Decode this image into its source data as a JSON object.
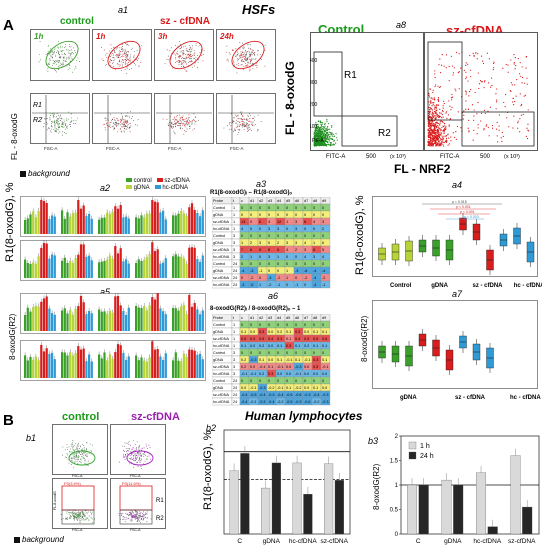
{
  "panel_A": {
    "letter": "A",
    "title": "HSFs",
    "a1": {
      "label": "a1",
      "control": "control",
      "sz_cfdna": "sz - cfDNA",
      "times": [
        "1h",
        "1h",
        "3h",
        "24h"
      ],
      "fl_label": "FL - 8-oxodG",
      "r1": "R1",
      "r2": "R2",
      "xaxis": "FSC-A",
      "background": "background"
    },
    "a8": {
      "label": "a8",
      "control": "Control",
      "sz_cfdna": "sz-cfDNA",
      "ylabel": "FL - 8-oxodG",
      "xlabel": "FL - NRF2",
      "r1": "R1",
      "r2": "R2",
      "pe": "PE-A",
      "fitc": "FITC-A",
      "xunit": "(x 10³)",
      "yunit": "(x 10³)",
      "ticks_y": [
        "400",
        "300",
        "200",
        "100"
      ],
      "tick_x": "500"
    },
    "a2": {
      "label": "a2",
      "ylabel": "R1(8-oxodG), %",
      "legend": [
        "control",
        "gDNA",
        "sz-cfDNA",
        "hc-cfDNA"
      ]
    },
    "a3": {
      "label": "a3",
      "formula": "R1(8-oxodG)ᵢ – R1(8-oxodG)ₒ",
      "header": [
        "Probe",
        "t",
        "c",
        "d1",
        "d2",
        "d3",
        "d4",
        "d5",
        "d6",
        "d7",
        "d8",
        "d9"
      ],
      "rows": [
        [
          "Control",
          "1",
          "0",
          "0",
          "0",
          "0",
          "0",
          "0",
          "0",
          "0",
          "0",
          "0"
        ],
        [
          "gDNA",
          "1",
          "0",
          "0",
          "0",
          "0",
          "0",
          "0",
          "0",
          "0",
          "0",
          "0"
        ],
        [
          "sz-cfDNA",
          "1",
          "13",
          "0",
          "6",
          "4",
          "12",
          "1",
          "3",
          "6",
          "4",
          "3"
        ],
        [
          "hc-cfDNA",
          "1",
          "4",
          "0",
          "0",
          "3",
          "3",
          "0",
          "3",
          "0",
          "0",
          "2"
        ],
        [
          "Control",
          "3",
          "0",
          "0",
          "0",
          "0",
          "0",
          "0",
          "0",
          "0",
          "0",
          "0"
        ],
        [
          "gDNA",
          "3",
          "1",
          "2",
          "3",
          "0",
          "2",
          "3",
          "3",
          "4",
          "1",
          "6"
        ],
        [
          "sz-cfDNA",
          "3",
          "7",
          "6",
          "6",
          "8",
          "6",
          "4",
          "2",
          "3",
          "8",
          "5"
        ],
        [
          "hc-cfDNA",
          "3",
          "2",
          "1",
          "0",
          "3",
          "1",
          "0",
          "0",
          "4",
          "3",
          "4"
        ],
        [
          "Control",
          "24",
          "0",
          "0",
          "0",
          "0",
          "0",
          "0",
          "0",
          "0",
          "0",
          "0"
        ],
        [
          "gDNA",
          "24",
          "-4",
          "-3",
          "-1",
          "0",
          "0",
          "1",
          "-3",
          "-6",
          "-4",
          "-4"
        ],
        [
          "sz-cfDNA",
          "24",
          "0",
          "-2",
          "0",
          "-3",
          "-2",
          "1",
          "0",
          "-2",
          "-4",
          "-2"
        ],
        [
          "hc-cfDNA",
          "24",
          "-3",
          "-5",
          "1",
          "-2",
          "-1",
          "0",
          "-1",
          "0",
          "-4",
          "-1"
        ]
      ]
    },
    "a4": {
      "label": "a4",
      "ylabel": "R1(8-oxodG), %",
      "groups": [
        "Control",
        "gDNA",
        "sz - cfDNA",
        "hc - cfDNA"
      ],
      "pvals": [
        "p = 0.015",
        "p < 0.001",
        "p < 0.001",
        "p = 0.003"
      ]
    },
    "a5": {
      "label": "a5",
      "ylabel": "8-oxodG(R2)"
    },
    "a6": {
      "label": "a6",
      "formula": "8-oxodG(R2)ᵢ / 8-oxodG(R2)ₒ – 1",
      "header": [
        "Probe",
        "t",
        "c",
        "d1",
        "d2",
        "d3",
        "d4",
        "d5",
        "d6",
        "d7",
        "d8",
        "d9"
      ],
      "rows": [
        [
          "Control",
          "1",
          "0",
          "0",
          "0",
          "0",
          "0",
          "0",
          "0",
          "0",
          "0",
          "0"
        ],
        [
          "gDNA",
          "1",
          "0.1",
          "0.0",
          "0.3",
          "0.0",
          "0.2",
          "0.1",
          "0.3",
          "0.0",
          "0.1",
          "0.1"
        ],
        [
          "sz-cfDNA",
          "1",
          "0.5",
          "0.3",
          "0.5",
          "0.4",
          "0.3",
          "0.1",
          "0.4",
          "0.3",
          "0.5",
          "0.6"
        ],
        [
          "hc-cfDNA",
          "1",
          "0.1",
          "0.0",
          "0.2",
          "0.0",
          "0.1",
          "0.3",
          "0.1",
          "0.2",
          "0.1",
          "0.1"
        ],
        [
          "Control",
          "3",
          "0",
          "0",
          "0",
          "0",
          "0",
          "0",
          "0",
          "0",
          "0",
          "0"
        ],
        [
          "gDNA",
          "3",
          "0.2",
          "-0.3",
          "0.1",
          "0.0",
          "0.1",
          "-0.1",
          "0.1",
          "-0.1",
          "0.3",
          "0.1"
        ],
        [
          "sz-cfDNA",
          "3",
          "0.2",
          "0.0",
          "-0.1",
          "0.1",
          "-0.1",
          "0.0",
          "-0.3",
          "0.0",
          "0.3",
          "-0.1"
        ],
        [
          "hc-cfDNA",
          "3",
          "-0.1",
          "-0.1",
          "0.2",
          "0.3",
          "0.0",
          "0.0",
          "-0.1",
          "0.0",
          "0.0",
          "0.0"
        ],
        [
          "Control",
          "24",
          "0",
          "0",
          "0",
          "0",
          "0",
          "0",
          "0",
          "0",
          "0",
          "0"
        ],
        [
          "gDNA",
          "24",
          "0.0",
          "-0.1",
          "-0.3",
          "-0.2",
          "-0.1",
          "0.1",
          "-0.2",
          "0.0",
          "0.1",
          "0.0"
        ],
        [
          "sz-cfDNA",
          "24",
          "-0.4",
          "-0.5",
          "-0.4",
          "-0.3",
          "-0.4",
          "-0.6",
          "-0.6",
          "-0.3",
          "-0.4",
          "-0.3"
        ],
        [
          "hc-cfDNA",
          "24",
          "-0.4",
          "-0.1",
          "-0.3",
          "-0.4",
          "-0.2",
          "-0.5",
          "-0.3",
          "-0.6",
          "-0.2",
          "-0.3"
        ]
      ]
    },
    "a7": {
      "label": "a7",
      "ylabel": "8-oxodG(R2)",
      "groups": [
        "gDNA",
        "sz - cfDNA",
        "hc - cfDNA"
      ]
    }
  },
  "panel_B": {
    "letter": "B",
    "title": "Human lymphocytes",
    "b1": {
      "label": "b1",
      "control": "control",
      "sz_cfdna": "sz-cfDNA",
      "background": "background",
      "r1": "R1",
      "r2": "R2",
      "gate1": "P3(3.9%)",
      "gate2": "P3(11.6%)",
      "fl_label": "FL-8-oxodG",
      "xaxis": "FSC-A"
    },
    "b2": {
      "label": "b2",
      "ylabel": "R1(8-oxodG), %"
    },
    "b3": {
      "label": "b3",
      "ylabel": "8-oxodG(R2)",
      "legend": [
        "1 h",
        "24 h"
      ]
    }
  },
  "chart_data": [
    {
      "id": "b2",
      "type": "bar",
      "categories": [
        "C",
        "gDNA",
        "hc-cfDNA",
        "sz-cfDNA"
      ],
      "series": [
        {
          "name": "1 h",
          "values": [
            7.3,
            5.3,
            8.2,
            8.1
          ]
        },
        {
          "name": "24 h",
          "values": [
            9.3,
            8.2,
            4.6,
            6.2
          ]
        }
      ],
      "ylim": [
        0,
        12
      ],
      "reference_lines": [
        9.5,
        6.3
      ],
      "ylabel": "R1(8-oxodG), %",
      "colors": [
        "#d9d9d9",
        "#262626"
      ]
    },
    {
      "id": "b3",
      "type": "bar",
      "categories": [
        "C",
        "gDNA",
        "hc-cfDNA",
        "sz-cfDNA"
      ],
      "series": [
        {
          "name": "1 h",
          "values": [
            1.0,
            1.1,
            1.25,
            1.6
          ]
        },
        {
          "name": "24 h",
          "values": [
            1.0,
            1.0,
            0.15,
            0.55
          ]
        }
      ],
      "ylim": [
        0,
        2
      ],
      "yticks": [
        "0",
        "0.5",
        "1",
        "1.5",
        "2"
      ],
      "reference_lines": [
        1.0
      ],
      "ylabel": "8-oxodG(R2)",
      "legend": "top-left",
      "colors": [
        "#d9d9d9",
        "#262626"
      ]
    }
  ],
  "colors": {
    "control": "#3aa02a",
    "gdna": "#b6d33a",
    "szcfdna": "#d91c1c",
    "hccfdna": "#2e9bd6",
    "table_green": "#8fd17a",
    "table_yellow": "#f4ee7a",
    "table_red": "#f08a8a",
    "table_blue": "#6bb8e8"
  }
}
